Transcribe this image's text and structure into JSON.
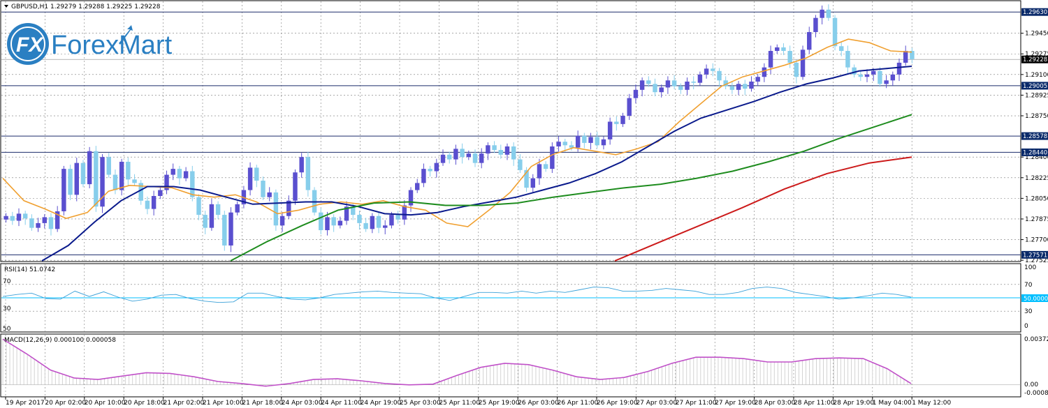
{
  "header": {
    "dropdown_icon": "triangle-down-icon",
    "title": "GBPUSD,H1  1.29279 1.29288 1.29225 1.29228"
  },
  "logo": {
    "badge": "FX",
    "name": "ForexMart",
    "color": "#2a7fc2"
  },
  "colors": {
    "bull": "#5a4fcf",
    "bear": "#87ceeb",
    "ma_fast": "#f0a030",
    "ma_mid": "#0a1a8c",
    "ma_slow": "#1e8c1e",
    "ma_long": "#cc1a1a",
    "rsi": "#3aa0d8",
    "rsi_mid": "#00bfff",
    "macd": "#c050c8",
    "level_box": "#0a2a6a",
    "current_box": "#000000"
  },
  "price_axis": {
    "ticks": [
      "1.29450",
      "1.29275",
      "1.29100",
      "1.28925",
      "1.28750",
      "1.28400",
      "1.28225",
      "1.28050",
      "1.27875",
      "1.27700",
      "1.27525"
    ],
    "levels": [
      "1.29630",
      "1.29005",
      "1.28578",
      "1.28440",
      "1.27571"
    ],
    "current": "1.29228"
  },
  "rsi": {
    "label": "RSI(14) 51.0742",
    "left_ticks": [
      "70",
      "30",
      "50"
    ],
    "right_ticks": [
      "100",
      "70",
      "30",
      "0"
    ],
    "mid_value": "50.0000"
  },
  "macd": {
    "label": "MACD(12,26,9) 0.000100 0.000058",
    "right_ticks": [
      "0.00372",
      "0.00",
      "-0.00084"
    ]
  },
  "time_axis": [
    "19 Apr 2017",
    "20 Apr 02:00",
    "20 Apr 10:00",
    "20 Apr 18:00",
    "21 Apr 02:00",
    "21 Apr 10:00",
    "21 Apr 18:00",
    "24 Apr 03:00",
    "24 Apr 11:00",
    "24 Apr 19:00",
    "25 Apr 03:00",
    "25 Apr 11:00",
    "25 Apr 19:00",
    "26 Apr 03:00",
    "26 Apr 11:00",
    "26 Apr 19:00",
    "27 Apr 03:00",
    "27 Apr 11:00",
    "27 Apr 19:00",
    "28 Apr 03:00",
    "28 Apr 11:00",
    "28 Apr 19:00",
    "1 May 04:00",
    "1 May 12:00"
  ],
  "chart_data": {
    "type": "line",
    "title": "GBPUSD,H1",
    "ylim": [
      1.2752,
      1.2972
    ],
    "close_series": [
      1.279,
      1.2786,
      1.2792,
      1.2788,
      1.278,
      1.2784,
      1.2789,
      1.2779,
      1.2794,
      1.283,
      1.2808,
      1.2835,
      1.2817,
      1.2845,
      1.2798,
      1.284,
      1.2825,
      1.2812,
      1.2836,
      1.2821,
      1.2818,
      1.2803,
      1.2796,
      1.2807,
      1.2812,
      1.2825,
      1.283,
      1.2822,
      1.2828,
      1.2806,
      1.2791,
      1.278,
      1.28,
      1.2791,
      1.2765,
      1.2793,
      1.28,
      1.2812,
      1.2831,
      1.282,
      1.2806,
      1.281,
      1.2782,
      1.279,
      1.2803,
      1.2827,
      1.284,
      1.2812,
      1.2793,
      1.2778,
      1.2789,
      1.2782,
      1.2786,
      1.2798,
      1.2791,
      1.2784,
      1.2779,
      1.279,
      1.278,
      1.2782,
      1.2791,
      1.2787,
      1.2799,
      1.2812,
      1.2818,
      1.283,
      1.2828,
      1.2835,
      1.2842,
      1.2838,
      1.2847,
      1.284,
      1.2843,
      1.2835,
      1.2843,
      1.285,
      1.2846,
      1.2842,
      1.2849,
      1.2838,
      1.2829,
      1.2814,
      1.2822,
      1.2834,
      1.283,
      1.2849,
      1.2853,
      1.285,
      1.2848,
      1.2858,
      1.2852,
      1.2857,
      1.285,
      1.2855,
      1.287,
      1.2868,
      1.2875,
      1.289,
      1.2897,
      1.2905,
      1.2902,
      1.2895,
      1.2899,
      1.2905,
      1.29,
      1.2897,
      1.2904,
      1.2903,
      1.291,
      1.2915,
      1.2913,
      1.2905,
      1.29,
      1.2897,
      1.2902,
      1.2898,
      1.2904,
      1.2908,
      1.2916,
      1.293,
      1.2933,
      1.293,
      1.292,
      1.2908,
      1.2931,
      1.2946,
      1.2958,
      1.2965,
      1.2958,
      1.2934,
      1.293,
      1.2916,
      1.291,
      1.2908,
      1.291,
      1.2913,
      1.2902,
      1.2905,
      1.291,
      1.292,
      1.293,
      1.2923
    ],
    "series": [
      {
        "name": "MA fast",
        "values": [
          1.2822,
          1.2803,
          1.2796,
          1.2788,
          1.2793,
          1.2811,
          1.2816,
          1.2815,
          1.2814,
          1.2808,
          1.2806,
          1.2808,
          1.2802,
          1.2792,
          1.2795,
          1.28,
          1.2802,
          1.28,
          1.2803,
          1.2798,
          1.2795,
          1.2784,
          1.2781,
          1.2795,
          1.281,
          1.2832,
          1.2842,
          1.2848,
          1.2845,
          1.2842,
          1.2847,
          1.2853,
          1.287,
          1.2885,
          1.29,
          1.2908,
          1.2913,
          1.2918,
          1.2924,
          1.2933,
          1.294,
          1.2937,
          1.293,
          1.2929
        ]
      },
      {
        "name": "MA mid",
        "values": [
          1.2752,
          1.2765,
          1.2785,
          1.2803,
          1.2815,
          1.2815,
          1.2812,
          1.2806,
          1.28,
          1.2801,
          1.2802,
          1.2802,
          1.2798,
          1.2792,
          1.2791,
          1.2793,
          1.2798,
          1.2802,
          1.2806,
          1.2812,
          1.2818,
          1.2826,
          1.2836,
          1.2849,
          1.2862,
          1.2873,
          1.288,
          1.2887,
          1.2895,
          1.2902,
          1.2907,
          1.2913,
          1.2915,
          1.2917
        ]
      },
      {
        "name": "MA slow",
        "values": [
          1.2752,
          1.2768,
          1.2782,
          1.2795,
          1.2801,
          1.2802,
          1.2799,
          1.2799,
          1.2801,
          1.2806,
          1.281,
          1.2814,
          1.2817,
          1.2822,
          1.2828,
          1.2836,
          1.2845,
          1.2856,
          1.2866,
          1.2876
        ]
      },
      {
        "name": "MA long",
        "values": [
          1.2752,
          1.2767,
          1.2782,
          1.2797,
          1.2813,
          1.2826,
          1.2835,
          1.284
        ]
      }
    ],
    "rsi_series": [
      52,
      55,
      57,
      49,
      48,
      60,
      52,
      59,
      51,
      45,
      48,
      54,
      55,
      49,
      45,
      43,
      44,
      57,
      57,
      52,
      48,
      47,
      50,
      55,
      57,
      59,
      60,
      58,
      57,
      56,
      50,
      46,
      52,
      58,
      58,
      57,
      60,
      57,
      60,
      58,
      62,
      66,
      65,
      60,
      60,
      61,
      64,
      62,
      60,
      55,
      55,
      58,
      64,
      66,
      64,
      58,
      55,
      52,
      48,
      50,
      53,
      57,
      55,
      51
    ],
    "rsi_range": [
      0,
      100
    ],
    "rsi_levels": [
      30,
      50,
      70
    ],
    "macd_series": [
      0.0034,
      0.0023,
      0.0011,
      0.0005,
      0.0004,
      0.00065,
      0.0009,
      0.00085,
      0.0006,
      0.00025,
      0.0001,
      -0.0001,
      0.0001,
      0.0004,
      0.00045,
      0.0003,
      0.0001,
      0.0,
      5e-05,
      0.0007,
      0.0013,
      0.0016,
      0.0015,
      0.0011,
      0.0006,
      0.0004,
      0.00055,
      0.001,
      0.0016,
      0.00205,
      0.00205,
      0.00195,
      0.0017,
      0.0017,
      0.00195,
      0.002,
      0.00195,
      0.0012,
      0.0001
    ],
    "macd_range": [
      -0.00084,
      0.00372
    ]
  }
}
